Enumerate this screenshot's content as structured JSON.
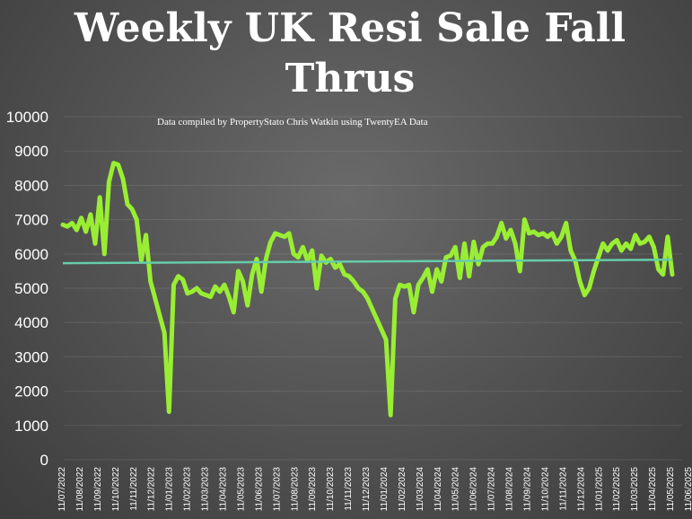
{
  "chart_data": {
    "type": "line",
    "title_lines": [
      "Weekly UK Resi Sale Fall",
      "Thrus"
    ],
    "subtitle": "Data compiled by PropertyStato Chris Watkin using TwentyEA Data",
    "xlabel": "",
    "ylabel": "",
    "ylim": [
      0,
      10000
    ],
    "yticks": [
      "0",
      "1000",
      "2000",
      "3000",
      "4000",
      "5000",
      "6000",
      "7000",
      "8000",
      "9000",
      "10000"
    ],
    "x_tick_labels": [
      "11/07/2022",
      "11/08/2022",
      "11/09/2022",
      "11/10/2022",
      "11/11/2022",
      "11/12/2022",
      "11/01/2023",
      "11/02/2023",
      "11/03/2023",
      "11/04/2023",
      "11/05/2023",
      "11/06/2023",
      "11/07/2023",
      "11/08/2023",
      "11/09/2023",
      "11/10/2023",
      "11/11/2023",
      "11/12/2023",
      "11/01/2024",
      "11/02/2024",
      "11/03/2024",
      "11/04/2024",
      "11/05/2024",
      "11/06/2024",
      "11/07/2024",
      "11/08/2024",
      "11/09/2024",
      "11/10/2024",
      "11/11/2024",
      "11/12/2024",
      "11/01/2025",
      "11/02/2025",
      "11/03/2025",
      "11/04/2025",
      "11/05/2025",
      "11/06/2025"
    ],
    "grid": true,
    "series": [
      {
        "color": "#99ee33",
        "values": [
          6850,
          6800,
          6900,
          6700,
          7050,
          6650,
          7150,
          6300,
          7650,
          6000,
          8100,
          8650,
          8600,
          8200,
          7450,
          7300,
          7000,
          5800,
          6550,
          5200,
          4700,
          4200,
          3700,
          1400,
          5100,
          5350,
          5250,
          4850,
          4900,
          5000,
          4850,
          4800,
          4750,
          5050,
          4900,
          5100,
          4750,
          4300,
          5500,
          5200,
          4500,
          5400,
          5850,
          4900,
          5850,
          6350,
          6600,
          6550,
          6500,
          6600,
          6000,
          5900,
          6200,
          5800,
          6100,
          5000,
          5950,
          5750,
          5850,
          5600,
          5700,
          5400,
          5350,
          5200,
          5000,
          4900,
          4700,
          4400,
          4100,
          3800,
          3500,
          1300,
          4700,
          5100,
          5050,
          5100,
          4300,
          5100,
          5300,
          5550,
          4900,
          5550,
          5200,
          5900,
          5950,
          6200,
          5300,
          6300,
          5350,
          6350,
          5700,
          6200,
          6300,
          6300,
          6500,
          6900,
          6450,
          6700,
          6300,
          5500,
          7000,
          6600,
          6650,
          6550,
          6600,
          6500,
          6600,
          6300,
          6500,
          6900,
          6100,
          5800,
          5200,
          4800,
          5000,
          5500,
          5900,
          6300,
          6100,
          6300,
          6400,
          6100,
          6300,
          6150,
          6550,
          6300,
          6350,
          6500,
          6200,
          5550,
          5400,
          6500,
          5400
        ]
      },
      {
        "color": "#66ccaa",
        "values": [
          5730,
          5830
        ]
      }
    ]
  }
}
